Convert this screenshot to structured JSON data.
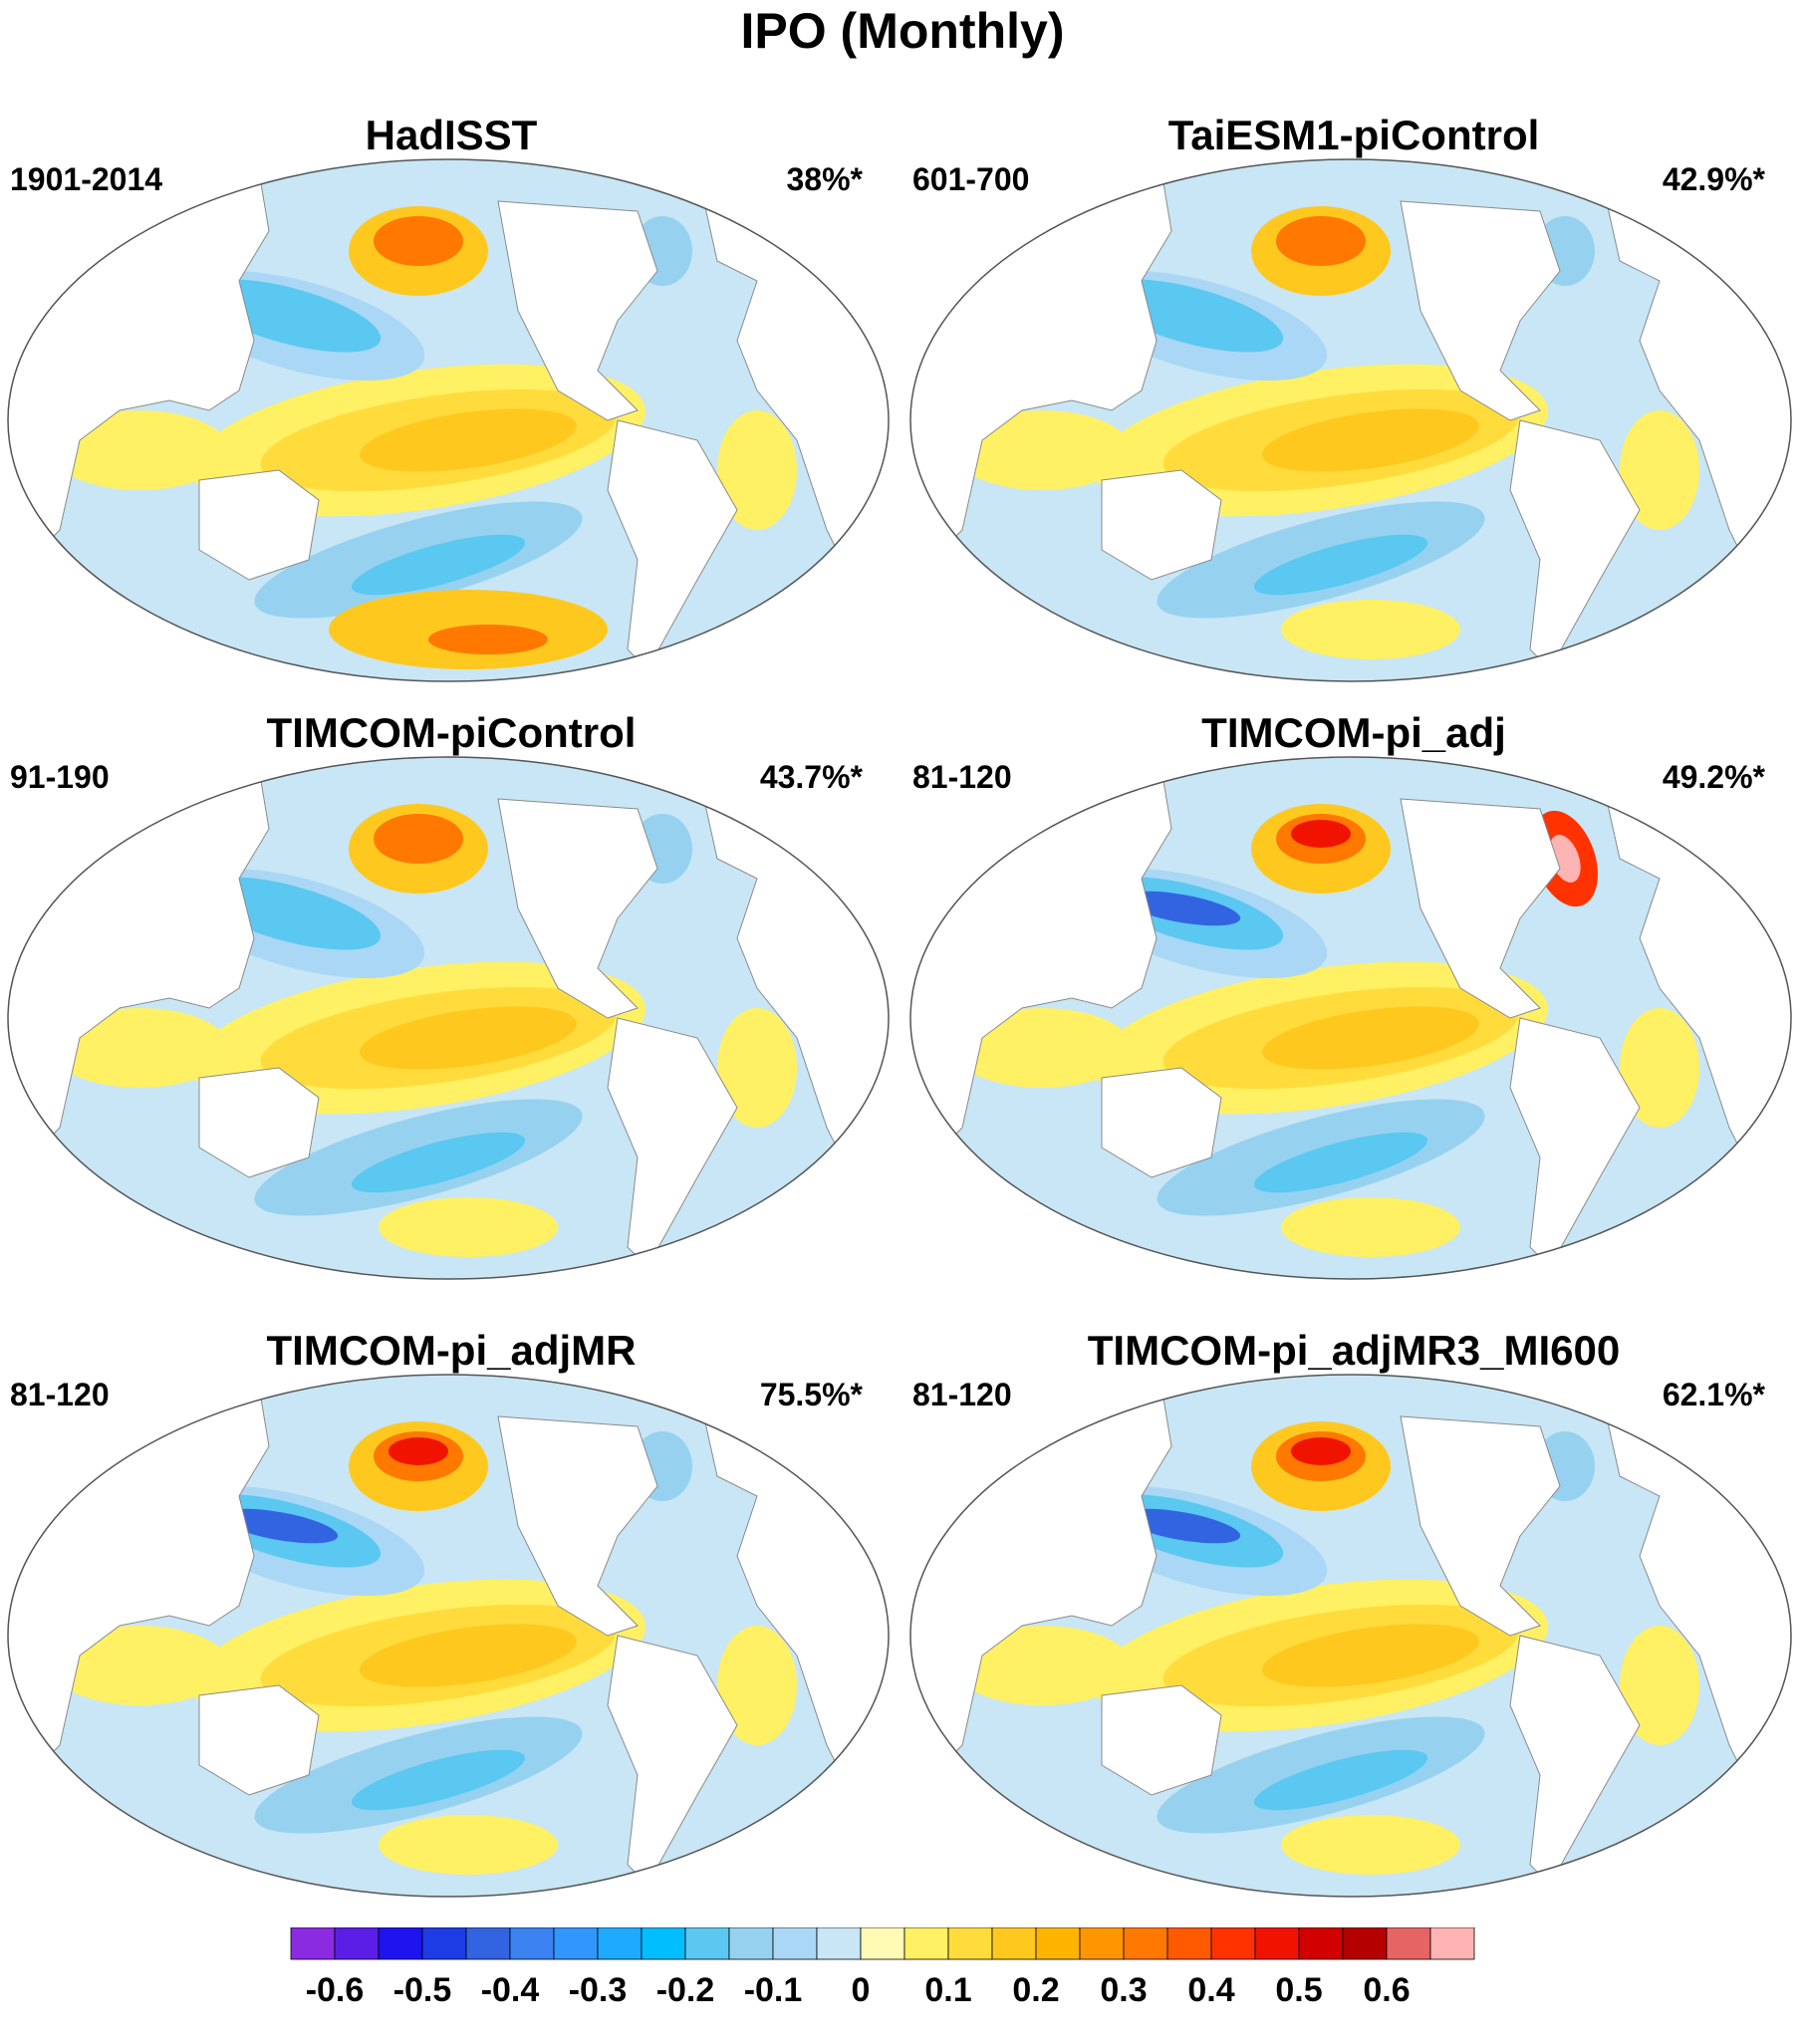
{
  "figure": {
    "title": "IPO (Monthly)"
  },
  "panels": [
    {
      "title": "HadISST",
      "period": "1901-2014",
      "variance": "38%*",
      "pattern": "observed"
    },
    {
      "title": "TaiESM1-piControl",
      "period": "601-700",
      "variance": "42.9%*",
      "pattern": "smooth"
    },
    {
      "title": "TIMCOM-piControl",
      "period": "91-190",
      "variance": "43.7%*",
      "pattern": "smooth"
    },
    {
      "title": "TIMCOM-pi_adj",
      "period": "81-120",
      "variance": "49.2%*",
      "pattern": "strong-atlantic"
    },
    {
      "title": "TIMCOM-pi_adjMR",
      "period": "81-120",
      "variance": "75.5%*",
      "pattern": "strong"
    },
    {
      "title": "TIMCOM-pi_adjMR3_MI600",
      "period": "81-120",
      "variance": "62.1%*",
      "pattern": "strong"
    }
  ],
  "colorbar": {
    "levels": [
      -0.65,
      -0.6,
      -0.55,
      -0.5,
      -0.45,
      -0.4,
      -0.35,
      -0.3,
      -0.25,
      -0.2,
      -0.15,
      -0.1,
      -0.05,
      0,
      0.05,
      0.1,
      0.15,
      0.2,
      0.25,
      0.3,
      0.35,
      0.4,
      0.45,
      0.5,
      0.55,
      0.6,
      0.65
    ],
    "tick_labels": [
      "-0.6",
      "-0.5",
      "-0.4",
      "-0.3",
      "-0.2",
      "-0.1",
      "0",
      "0.1",
      "0.2",
      "0.3",
      "0.4",
      "0.5",
      "0.6"
    ],
    "colors": [
      "#8a2be2",
      "#5a1ee6",
      "#1e14f0",
      "#1e3ce6",
      "#3264e1",
      "#3c82f0",
      "#3296ff",
      "#1eaaff",
      "#00beff",
      "#5ac8f0",
      "#96d2f0",
      "#aad7f5",
      "#c8e6f5",
      "#fffab4",
      "#fff064",
      "#ffdc3c",
      "#ffc81e",
      "#ffb400",
      "#ff9600",
      "#ff7800",
      "#ff5a00",
      "#ff3200",
      "#f01400",
      "#d20000",
      "#b40000",
      "#e66464",
      "#ffb4b4"
    ]
  }
}
